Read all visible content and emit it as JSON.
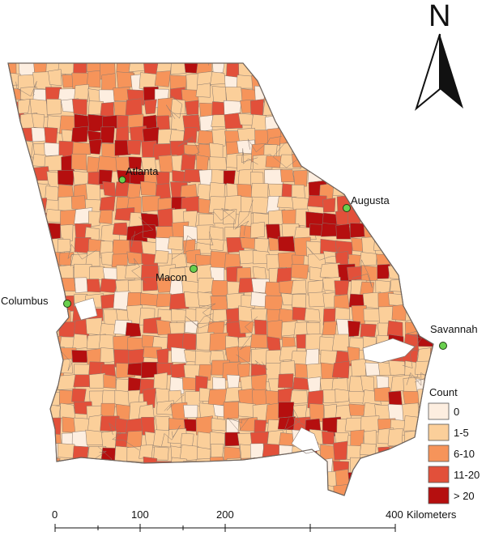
{
  "north_label": "N",
  "cities": [
    {
      "id": "atlanta",
      "name": "Atlanta"
    },
    {
      "id": "augusta",
      "name": "Augusta"
    },
    {
      "id": "macon",
      "name": "Macon"
    },
    {
      "id": "columbus",
      "name": "Columbus"
    },
    {
      "id": "savannah",
      "name": "Savannah"
    }
  ],
  "legend": {
    "title": "Count",
    "classes": [
      {
        "label": "0",
        "color": "#fdeee0"
      },
      {
        "label": "1-5",
        "color": "#fbcf9a"
      },
      {
        "label": "6-10",
        "color": "#f6945a"
      },
      {
        "label": "11-20",
        "color": "#e2503a"
      },
      {
        "label": "> 20",
        "color": "#b50f0f"
      }
    ]
  },
  "scale_bar": {
    "ticks": [
      "0",
      "100",
      "200",
      "400"
    ],
    "unit": "Kilometers"
  },
  "colors": {
    "boundary": "#8a7a70",
    "city_marker": "#6ad04f",
    "water": "#ffffff"
  }
}
